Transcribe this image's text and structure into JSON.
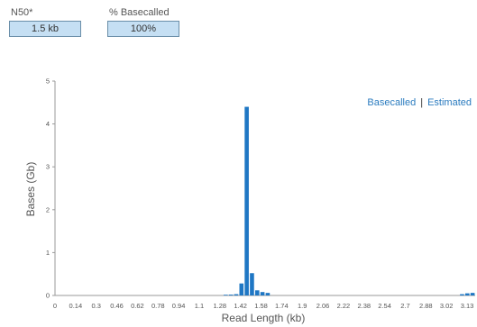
{
  "stats": {
    "n50": {
      "label": "N50*",
      "value": "1.5 kb"
    },
    "basecalled_pct": {
      "label": "% Basecalled",
      "value": "100%"
    }
  },
  "legend": {
    "basecalled": "Basecalled",
    "separator": "|",
    "estimated": "Estimated"
  },
  "colors": {
    "bar": "#1f77c4",
    "legend_text": "#2a7bbf",
    "axis": "#999999",
    "stat_box": "#c5dff3"
  },
  "chart_data": {
    "type": "bar",
    "title": "",
    "xlabel": "Read Length (kb)",
    "ylabel": "Bases (Gb)",
    "xlim": [
      0,
      3.2
    ],
    "ylim": [
      0,
      5
    ],
    "x_ticks": [
      "0",
      "0.14",
      "0.3",
      "0.46",
      "0.62",
      "0.78",
      "0.94",
      "1.1",
      "1.28",
      "1.42",
      "1.58",
      "1.74",
      "1.9",
      "2.06",
      "2.22",
      "2.38",
      "2.54",
      "2.7",
      "2.88",
      "3.02",
      "3.13"
    ],
    "y_ticks": [
      "0",
      "1",
      "2",
      "3",
      "4",
      "5"
    ],
    "legend_position": "top-right",
    "series": [
      {
        "x": [
          1.3,
          1.34,
          1.38,
          1.42,
          1.46,
          1.5,
          1.54,
          1.58,
          1.62,
          3.1,
          3.14,
          3.18
        ],
        "values": [
          0.01,
          0.02,
          0.03,
          0.28,
          4.4,
          0.52,
          0.12,
          0.08,
          0.06,
          0.03,
          0.05,
          0.06
        ]
      }
    ]
  }
}
